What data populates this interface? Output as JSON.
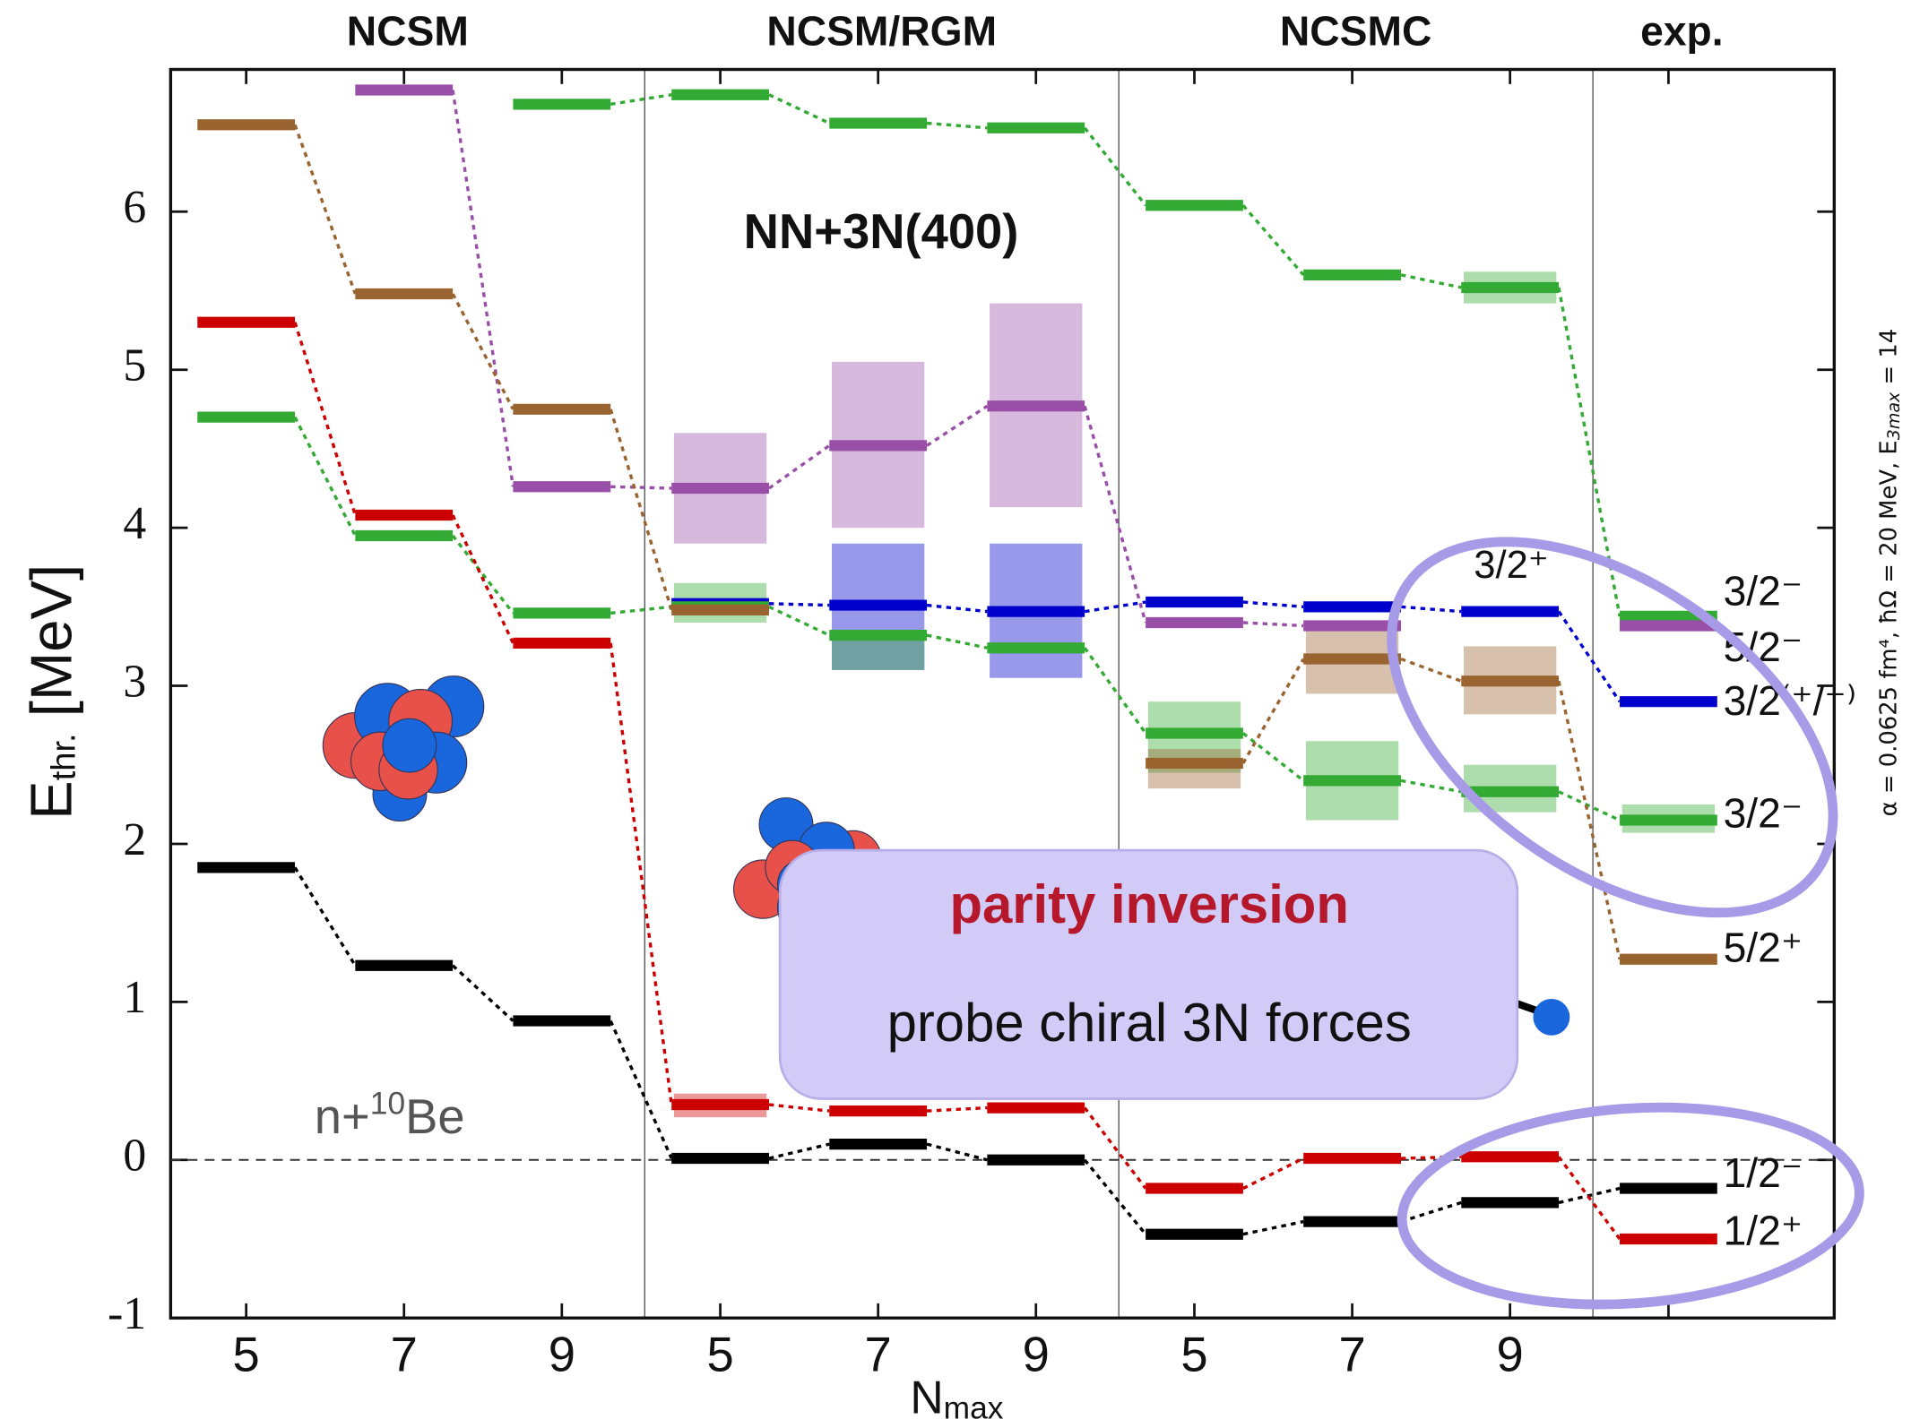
{
  "chart_data": {
    "type": "level",
    "groups": [
      {
        "name": "NCSM",
        "categories": [
          "5",
          "7",
          "9"
        ]
      },
      {
        "name": "NCSM/RGM",
        "categories": [
          "5",
          "7",
          "9"
        ]
      },
      {
        "name": "NCSMC",
        "categories": [
          "5",
          "7",
          "9"
        ]
      },
      {
        "name": "exp.",
        "categories": [
          null
        ]
      }
    ],
    "xlabel": {
      "text": "N",
      "sub": "max"
    },
    "ylabel": {
      "text": "E",
      "sub": "thr.",
      "unit": " [MeV]"
    },
    "ylim": [
      -1,
      6.9
    ],
    "yticks": [
      -1,
      0,
      1,
      2,
      3,
      4,
      5,
      6
    ],
    "zero_line": true,
    "series": [
      {
        "name": "3/2⁻",
        "color": "#33aa33",
        "values": [
          null,
          null,
          6.68,
          6.74,
          6.56,
          6.53,
          6.04,
          5.6,
          5.52,
          3.44
        ],
        "bands": [
          null,
          null,
          null,
          null,
          null,
          null,
          null,
          null,
          [
            5.42,
            5.62
          ],
          null
        ]
      },
      {
        "name": "5/2⁻",
        "color": "#994fa8",
        "values": [
          null,
          6.77,
          4.26,
          4.25,
          4.52,
          4.77,
          3.4,
          3.38,
          null,
          3.38
        ],
        "bands": [
          null,
          null,
          null,
          [
            3.9,
            4.6
          ],
          [
            4.0,
            5.05
          ],
          [
            4.13,
            5.42
          ],
          null,
          null,
          null,
          null
        ]
      },
      {
        "name": "3/2⁽⁺/⁻⁾",
        "color": "#0000cc",
        "values": [
          null,
          null,
          null,
          3.52,
          3.51,
          3.47,
          3.53,
          3.5,
          3.47,
          2.9
        ],
        "bands": [
          null,
          null,
          null,
          null,
          [
            3.1,
            3.9
          ],
          [
            3.05,
            3.9
          ],
          null,
          null,
          null,
          null
        ]
      },
      {
        "name": "3/2⁻",
        "color": "#33aa33",
        "values": [
          4.7,
          3.95,
          3.46,
          3.5,
          3.32,
          3.24,
          2.7,
          2.4,
          2.33,
          2.15
        ],
        "bands": [
          null,
          null,
          null,
          [
            3.4,
            3.65
          ],
          [
            3.1,
            3.35
          ],
          null,
          [
            2.45,
            2.9
          ],
          [
            2.15,
            2.65
          ],
          [
            2.2,
            2.5
          ],
          [
            2.07,
            2.25
          ]
        ]
      },
      {
        "name": "5/2⁺",
        "color": "#9a6430",
        "values": [
          6.55,
          5.48,
          4.75,
          3.48,
          null,
          null,
          2.51,
          3.17,
          3.03,
          1.27
        ],
        "bands": [
          null,
          null,
          null,
          null,
          null,
          null,
          [
            2.35,
            2.6
          ],
          [
            2.95,
            3.35
          ],
          [
            2.82,
            3.25
          ],
          null
        ]
      },
      {
        "name": "1/2⁻",
        "color": "#000000",
        "values": [
          1.85,
          1.23,
          0.88,
          0.01,
          0.1,
          0.0,
          -0.47,
          -0.39,
          -0.27,
          -0.18
        ],
        "bands": [
          null,
          null,
          null,
          null,
          null,
          null,
          null,
          null,
          null,
          null
        ]
      },
      {
        "name": "1/2⁺",
        "color": "#cc0000",
        "values": [
          5.3,
          4.08,
          3.27,
          0.35,
          0.31,
          0.33,
          -0.18,
          0.01,
          0.02,
          -0.5
        ],
        "bands": [
          null,
          null,
          null,
          [
            0.27,
            0.42
          ],
          null,
          null,
          null,
          null,
          null,
          null
        ]
      }
    ],
    "annotations": {
      "model": "NN+3N(400)",
      "target": [
        "n+",
        "10",
        "Be"
      ],
      "state": "3/2⁺",
      "callout": [
        "parity inversion",
        "probe chiral 3N forces"
      ],
      "side_note": [
        "α = 0.0625 fm⁴,  ħΩ = 20 MeV,  E",
        "3max",
        " = 14"
      ]
    }
  }
}
